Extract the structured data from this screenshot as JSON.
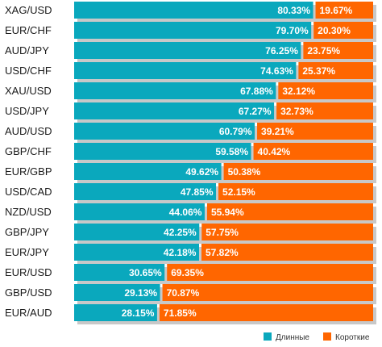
{
  "chart_data": {
    "type": "bar",
    "stacked": true,
    "orientation": "horizontal",
    "categories": [
      "XAG/USD",
      "EUR/CHF",
      "AUD/JPY",
      "USD/CHF",
      "XAU/USD",
      "USD/JPY",
      "AUD/USD",
      "GBP/CHF",
      "EUR/GBP",
      "USD/CAD",
      "NZD/USD",
      "GBP/JPY",
      "EUR/JPY",
      "EUR/USD",
      "GBP/USD",
      "EUR/AUD"
    ],
    "series": [
      {
        "name": "Длинные",
        "color": "#0aa8bd",
        "values": [
          80.33,
          79.7,
          76.25,
          74.63,
          67.88,
          67.27,
          60.79,
          59.58,
          49.62,
          47.85,
          44.06,
          42.25,
          42.18,
          30.65,
          29.13,
          28.15
        ]
      },
      {
        "name": "Короткие",
        "color": "#ff6600",
        "values": [
          19.67,
          20.3,
          23.75,
          25.37,
          32.12,
          32.73,
          39.21,
          40.42,
          50.38,
          52.15,
          55.94,
          57.75,
          57.82,
          69.35,
          70.87,
          71.85
        ]
      }
    ],
    "value_labels": {
      "long": [
        "80.33%",
        "79.70%",
        "76.25%",
        "74.63%",
        "67.88%",
        "67.27%",
        "60.79%",
        "59.58%",
        "49.62%",
        "47.85%",
        "44.06%",
        "42.25%",
        "42.18%",
        "30.65%",
        "29.13%",
        "28.15%"
      ],
      "short": [
        "19.67%",
        "20.30%",
        "23.75%",
        "25.37%",
        "32.12%",
        "32.73%",
        "39.21%",
        "40.42%",
        "50.38%",
        "52.15%",
        "55.94%",
        "57.75%",
        "57.82%",
        "69.35%",
        "70.87%",
        "71.85%"
      ]
    },
    "xlim": [
      0,
      100
    ],
    "legend_position": "bottom-right",
    "grid": false
  }
}
